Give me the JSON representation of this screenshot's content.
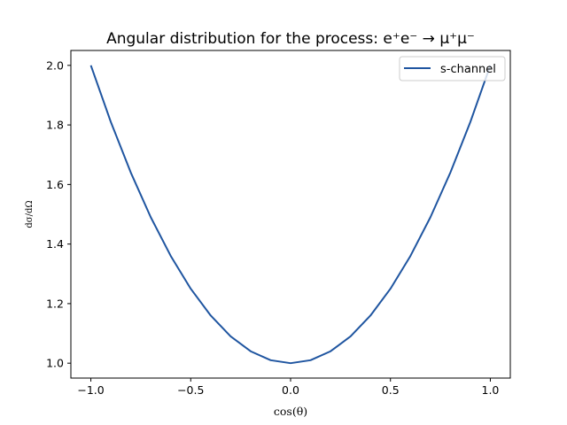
{
  "chart_data": {
    "type": "line",
    "title": "Angular distribution for the process: e⁺e⁻ → μ⁺μ⁻",
    "xlabel": "cos(θ)",
    "ylabel": "dσ/dΩ",
    "xlim": [
      -1.1,
      1.1
    ],
    "ylim": [
      0.95,
      2.05
    ],
    "xticks": [
      -1.0,
      -0.5,
      0.0,
      0.5,
      1.0
    ],
    "xtick_labels": [
      "−1.0",
      "−0.5",
      "0.0",
      "0.5",
      "1.0"
    ],
    "yticks": [
      1.0,
      1.2,
      1.4,
      1.6,
      1.8,
      2.0
    ],
    "ytick_labels": [
      "1.0",
      "1.2",
      "1.4",
      "1.6",
      "1.8",
      "2.0"
    ],
    "legend_position": "top-right",
    "grid": false,
    "series": [
      {
        "name": "s-channel",
        "color": "#1f55a0",
        "x": [
          -1.0,
          -0.9,
          -0.8,
          -0.7,
          -0.6,
          -0.5,
          -0.4,
          -0.3,
          -0.2,
          -0.1,
          0.0,
          0.1,
          0.2,
          0.3,
          0.4,
          0.5,
          0.6,
          0.7,
          0.8,
          0.9,
          1.0
        ],
        "y": [
          2.0,
          1.81,
          1.64,
          1.49,
          1.36,
          1.25,
          1.16,
          1.09,
          1.04,
          1.01,
          1.0,
          1.01,
          1.04,
          1.09,
          1.16,
          1.25,
          1.36,
          1.49,
          1.64,
          1.81,
          2.0
        ]
      }
    ]
  }
}
